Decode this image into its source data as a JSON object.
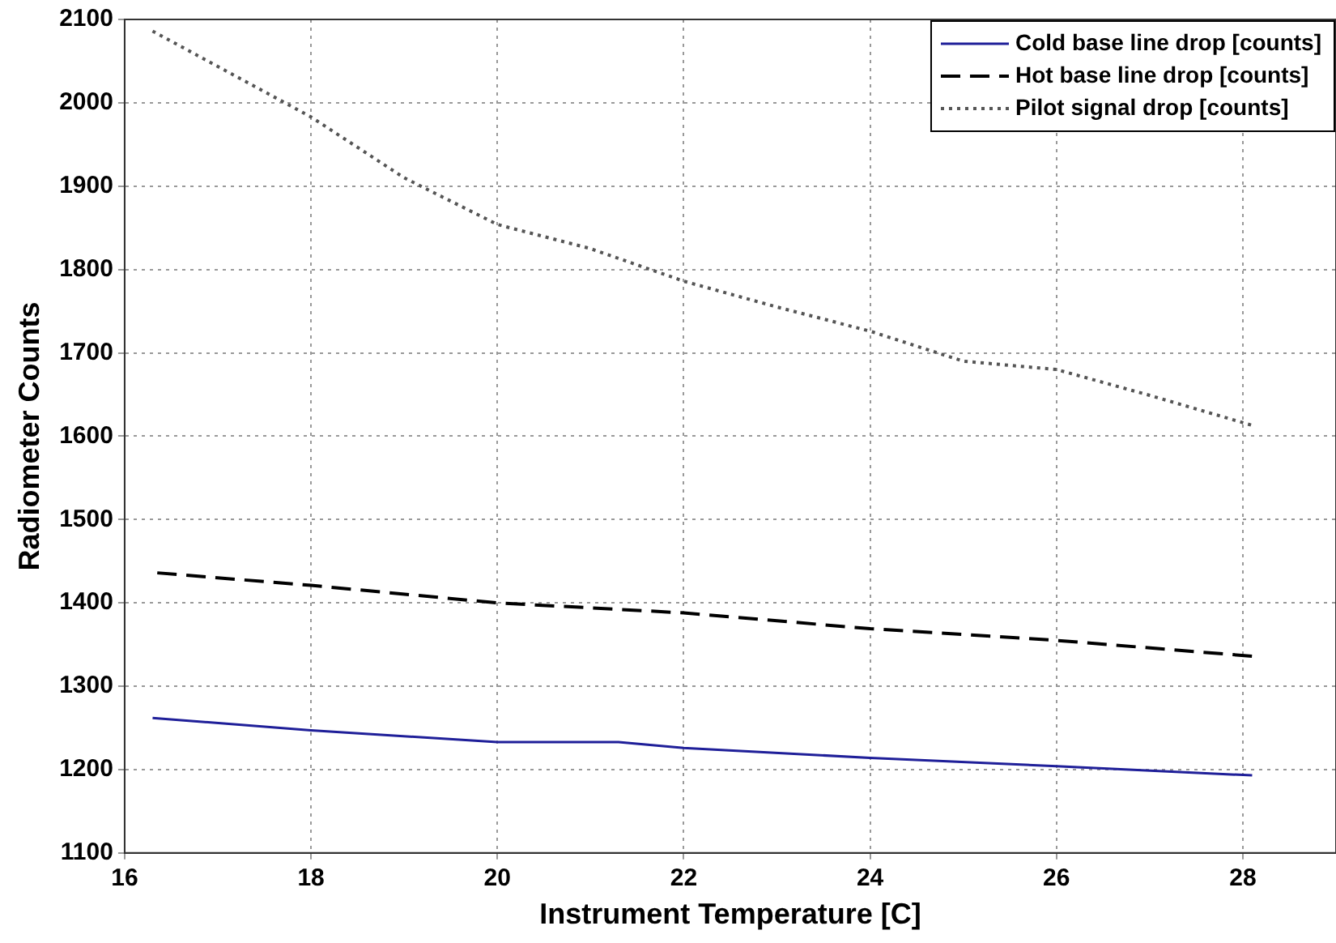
{
  "chart_data": {
    "type": "line",
    "xlabel": "Instrument Temperature [C]",
    "ylabel": "Radiometer Counts",
    "xlim": [
      16,
      29
    ],
    "xticks": [
      16,
      18,
      20,
      22,
      24,
      26,
      28
    ],
    "ylim": [
      1100,
      2100
    ],
    "yticks": [
      1100,
      1200,
      1300,
      1400,
      1500,
      1600,
      1700,
      1800,
      1900,
      2000,
      2100
    ],
    "grid": true,
    "legend": "top right",
    "marker": "none",
    "series": [
      {
        "name": "Cold base line drop [counts]",
        "color": "#1f1f99",
        "line_style": "solid",
        "x": [
          16.3,
          18,
          20,
          21.3,
          22,
          24,
          26,
          28.1
        ],
        "values": [
          1262,
          1247,
          1233,
          1233,
          1226,
          1214,
          1204,
          1193
        ]
      },
      {
        "name": "Hot base line drop [counts]",
        "color": "#000000",
        "line_style": "dashed",
        "x": [
          16.35,
          18,
          20,
          22,
          24,
          26,
          28.1
        ],
        "values": [
          1436,
          1421,
          1400,
          1388,
          1369,
          1355,
          1336
        ]
      },
      {
        "name": "Pilot signal drop [counts]",
        "color": "#555555",
        "line_style": "dotted",
        "x": [
          16.3,
          18,
          19,
          20,
          21,
          22,
          23,
          24,
          25,
          26,
          27,
          28.1
        ],
        "values": [
          2086,
          1983,
          1910,
          1854,
          1825,
          1786,
          1755,
          1726,
          1690,
          1680,
          1649,
          1613
        ]
      }
    ]
  }
}
